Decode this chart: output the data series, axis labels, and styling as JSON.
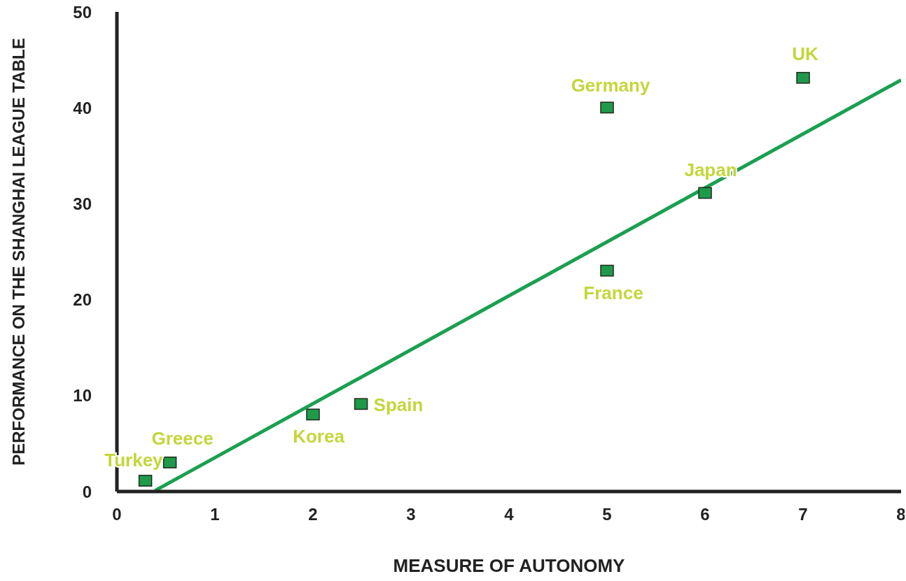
{
  "chart_data": {
    "type": "scatter",
    "xlabel": "MEASURE OF AUTONOMY",
    "ylabel": "PERFORMANCE ON THE SHANGHAI LEAGUE TABLE",
    "xlim": [
      0,
      8
    ],
    "xticks": [
      0,
      1,
      2,
      3,
      4,
      5,
      6,
      7,
      8
    ],
    "ylim": [
      0,
      50
    ],
    "yticks": [
      0,
      10,
      20,
      30,
      40,
      50
    ],
    "grid": false,
    "legend": false,
    "series": [
      {
        "marker": "square",
        "color": "#1f9a4a",
        "x": [
          0.29,
          0.54,
          2.0,
          2.49,
          5.0,
          6.0,
          5.0,
          7.0
        ],
        "values": [
          1.1,
          3.0,
          8.0,
          9.1,
          23.0,
          31.1,
          40.0,
          43.1
        ]
      },
      {
        "type": "line",
        "color": "#1aa050",
        "line_style": "solid",
        "x": [
          0.39,
          8
        ],
        "values": [
          0.1,
          42.9
        ]
      }
    ],
    "annotations": [
      {
        "text": "Turkey",
        "x": 0.29,
        "y": 1.1
      },
      {
        "text": "Greece",
        "x": 0.54,
        "y": 3.0
      },
      {
        "text": "Korea",
        "x": 2.0,
        "y": 8.0
      },
      {
        "text": "Spain",
        "x": 2.49,
        "y": 9.1
      },
      {
        "text": "France",
        "x": 5.0,
        "y": 23.0
      },
      {
        "text": "Japan",
        "x": 6.0,
        "y": 31.1
      },
      {
        "text": "Germany",
        "x": 5.0,
        "y": 40.0
      },
      {
        "text": "UK",
        "x": 7.0,
        "y": 43.1
      }
    ]
  }
}
